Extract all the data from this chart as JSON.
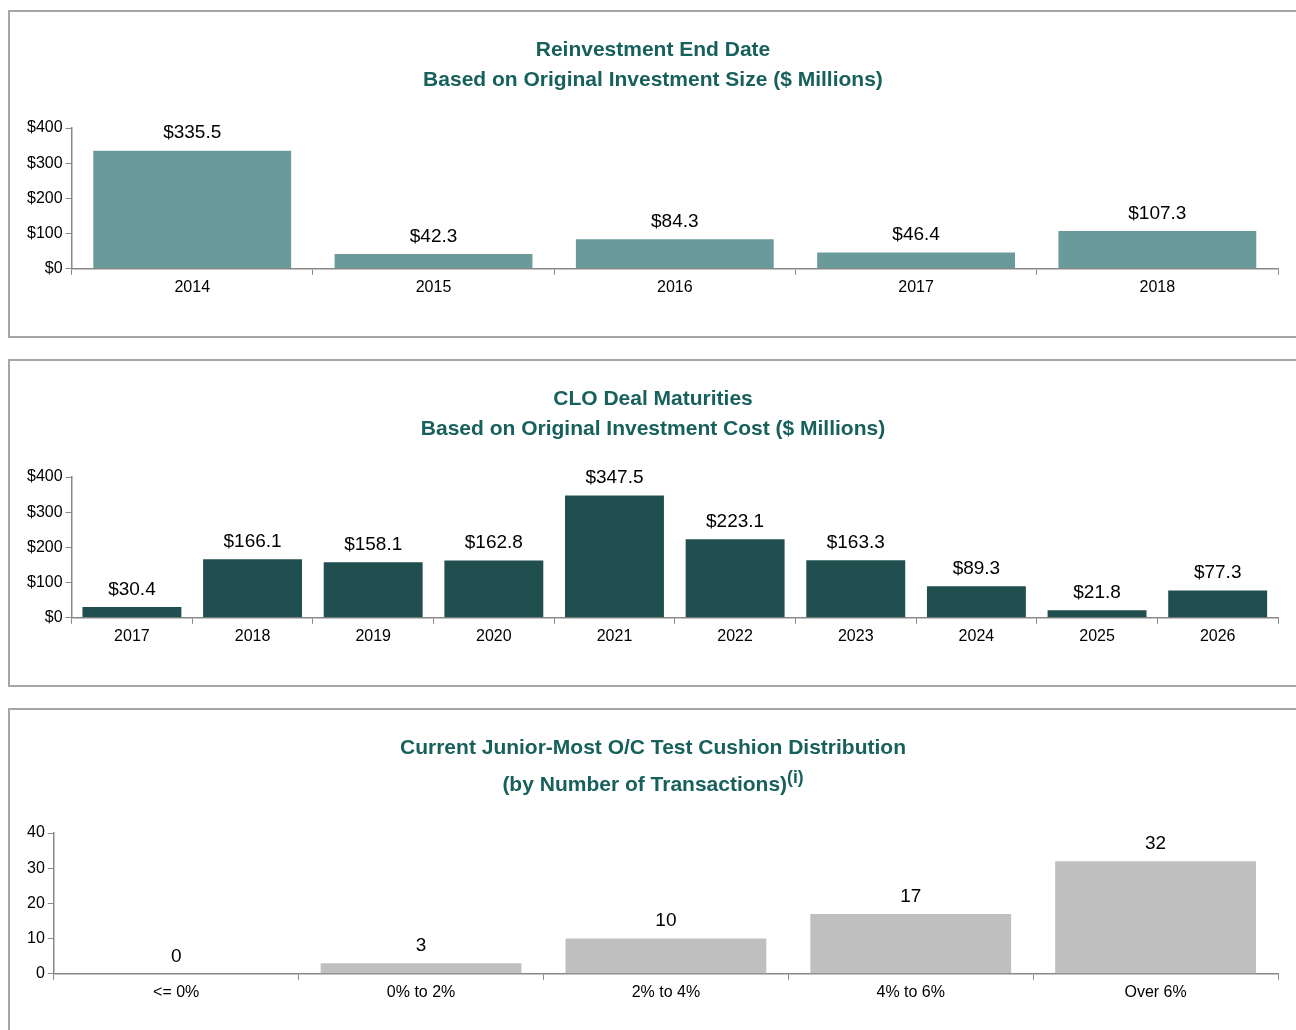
{
  "chart_data": [
    {
      "type": "bar",
      "title": "Reinvestment End Date",
      "subtitle": "Based on Original Investment Size ($ Millions)",
      "categories": [
        "2014",
        "2015",
        "2016",
        "2017",
        "2018"
      ],
      "values": [
        335.5,
        42.3,
        84.3,
        46.4,
        107.3
      ],
      "value_labels": [
        "$335.5",
        "$42.3",
        "$84.3",
        "$46.4",
        "$107.3"
      ],
      "color": "#6a9a99",
      "ylim": [
        0,
        400
      ],
      "yticks": [
        {
          "value": 0,
          "label": "$0"
        },
        {
          "value": 100,
          "label": "$100"
        },
        {
          "value": 200,
          "label": "$200"
        },
        {
          "value": 300,
          "label": "$300"
        },
        {
          "value": 400,
          "label": "$400"
        }
      ],
      "grid": false,
      "legend": false
    },
    {
      "type": "bar",
      "title": "CLO Deal Maturities",
      "subtitle": "Based on Original Investment Cost ($ Millions)",
      "categories": [
        "2017",
        "2018",
        "2019",
        "2020",
        "2021",
        "2022",
        "2023",
        "2024",
        "2025",
        "2026"
      ],
      "values": [
        30.4,
        166.1,
        158.1,
        162.8,
        347.5,
        223.1,
        163.3,
        89.3,
        21.8,
        77.3
      ],
      "value_labels": [
        "$30.4",
        "$166.1",
        "$158.1",
        "$162.8",
        "$347.5",
        "$223.1",
        "$163.3",
        "$89.3",
        "$21.8",
        "$77.3"
      ],
      "color": "#214f4f",
      "ylim": [
        0,
        400
      ],
      "yticks": [
        {
          "value": 0,
          "label": "$0"
        },
        {
          "value": 100,
          "label": "$100"
        },
        {
          "value": 200,
          "label": "$200"
        },
        {
          "value": 300,
          "label": "$300"
        },
        {
          "value": 400,
          "label": "$400"
        }
      ],
      "grid": false,
      "legend": false
    },
    {
      "type": "bar",
      "title": "Current Junior-Most O/C Test Cushion Distribution",
      "subtitle": "(by Number of Transactions)$^{(i)}$",
      "categories": [
        "<= 0%",
        "0% to 2%",
        "2% to 4%",
        "4% to 6%",
        "Over 6%"
      ],
      "values": [
        0,
        3,
        10,
        17,
        32
      ],
      "data_labels": true,
      "color": "#bfbfbf",
      "ylim": [
        0,
        40
      ],
      "yticks": [
        0,
        10,
        20,
        30,
        40
      ],
      "grid": false,
      "legend": false
    }
  ]
}
